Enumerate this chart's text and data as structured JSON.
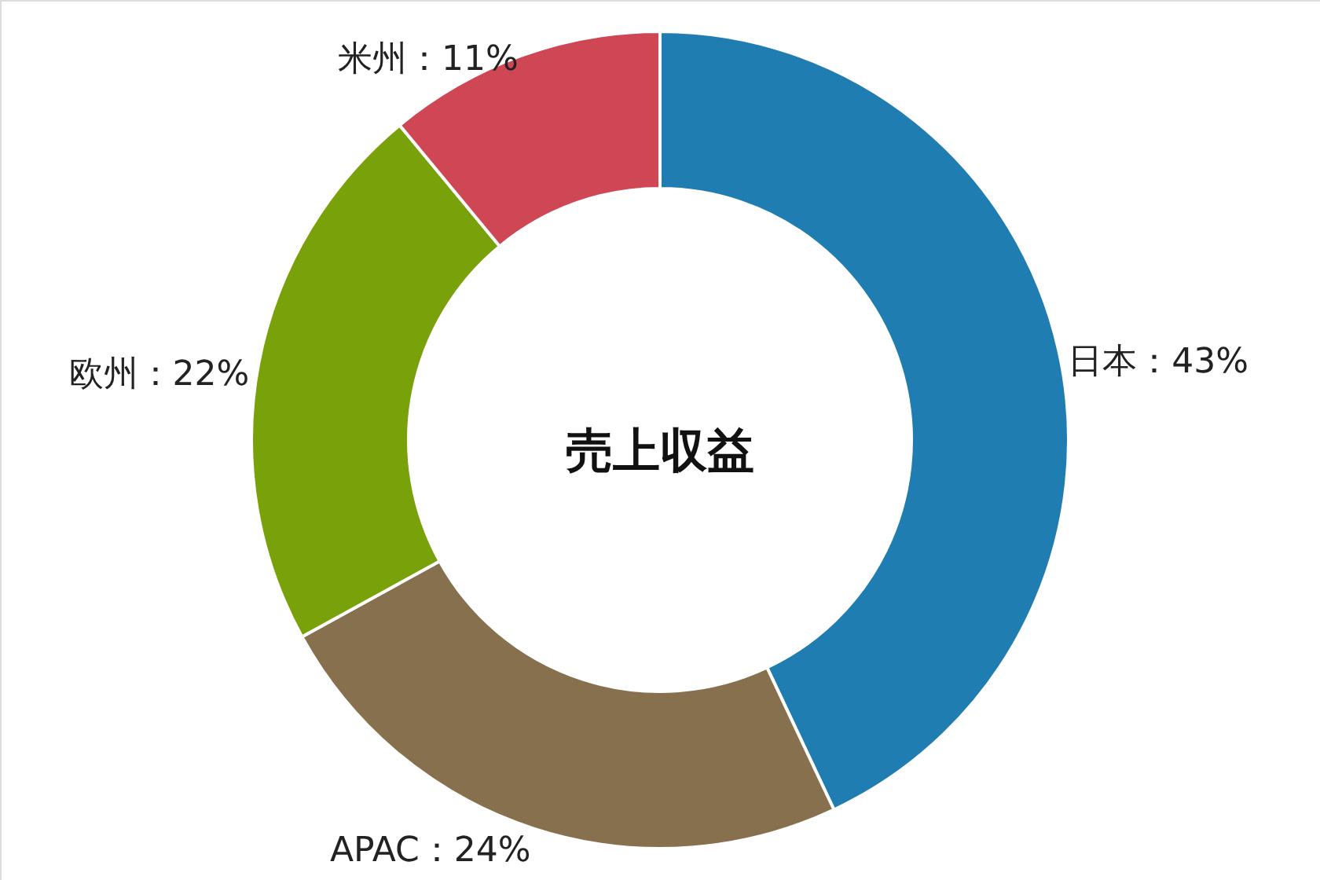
{
  "chart_data": {
    "type": "donut",
    "title": "売上収益",
    "categories": [
      "日本",
      "APAC",
      "欧州",
      "米州"
    ],
    "values": [
      43,
      24,
      22,
      11
    ],
    "colors": [
      "#1f7db2",
      "#87704d",
      "#78a10a",
      "#cf4655"
    ],
    "value_labels": [
      "43%",
      "24%",
      "22%",
      "11%"
    ]
  }
}
